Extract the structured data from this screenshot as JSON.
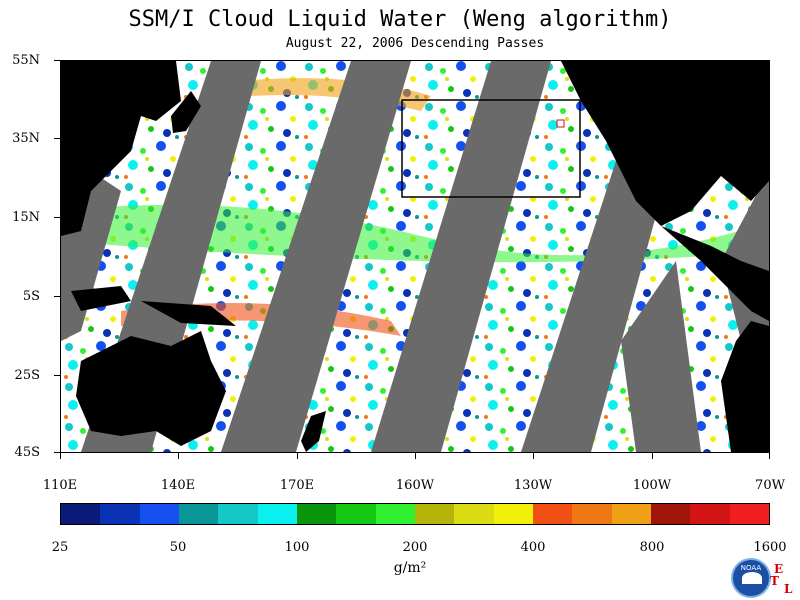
{
  "title": "SSM/I Cloud Liquid Water (Weng algorithm)",
  "subtitle": "August 22, 2006  Descending Passes",
  "map": {
    "lat_labels": [
      "55N",
      "35N",
      "15N",
      "5S",
      "25S",
      "45S"
    ],
    "lon_labels": [
      "110E",
      "140E",
      "170E",
      "160W",
      "130W",
      "100W",
      "70W"
    ],
    "background_color": "#ffffff",
    "land_color": "#000000",
    "swath_gap_color": "#6a6a6a",
    "selection_box": "present"
  },
  "colorbar": {
    "colors": [
      "#0a1a78",
      "#0a32b4",
      "#1450f0",
      "#0a9696",
      "#14c8c8",
      "#0af0f0",
      "#0a960a",
      "#14c814",
      "#32f032",
      "#b4b40a",
      "#dcdc14",
      "#f0f00a",
      "#f05014",
      "#f07814",
      "#f0a014",
      "#a0140a",
      "#d21414",
      "#f01e1e"
    ],
    "labels": [
      "25",
      "50",
      "100",
      "200",
      "400",
      "800",
      "1600"
    ],
    "unit": "g/m²"
  },
  "logo": {
    "text": "NOAA",
    "etl": [
      "E",
      "T",
      "L"
    ]
  }
}
